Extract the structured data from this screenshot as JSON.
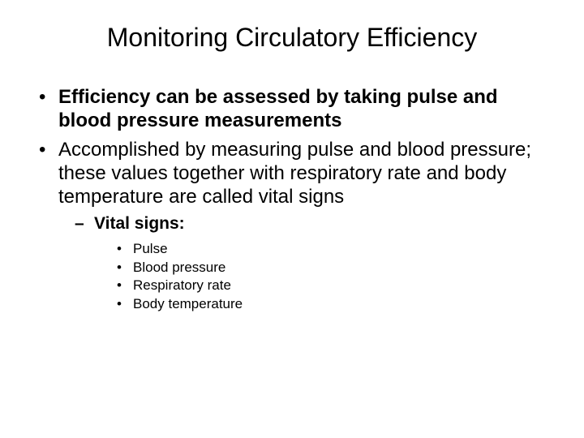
{
  "slide": {
    "title": "Monitoring Circulatory Efficiency",
    "bullets": [
      {
        "text": "Efficiency can be assessed by taking pulse and blood pressure measurements",
        "bold": true
      },
      {
        "text": "Accomplished by measuring pulse and blood pressure; these values together with respiratory rate and body temperature are called vital signs",
        "bold": false
      }
    ],
    "sub": {
      "heading": "Vital signs:",
      "items": [
        "Pulse",
        "Blood pressure",
        "Respiratory rate",
        "Body temperature"
      ]
    },
    "style": {
      "background_color": "#ffffff",
      "text_color": "#000000",
      "font_family": "Arial",
      "title_fontsize": 32,
      "body_fontsize": 24,
      "sub_fontsize": 21,
      "subsub_fontsize": 17
    }
  }
}
